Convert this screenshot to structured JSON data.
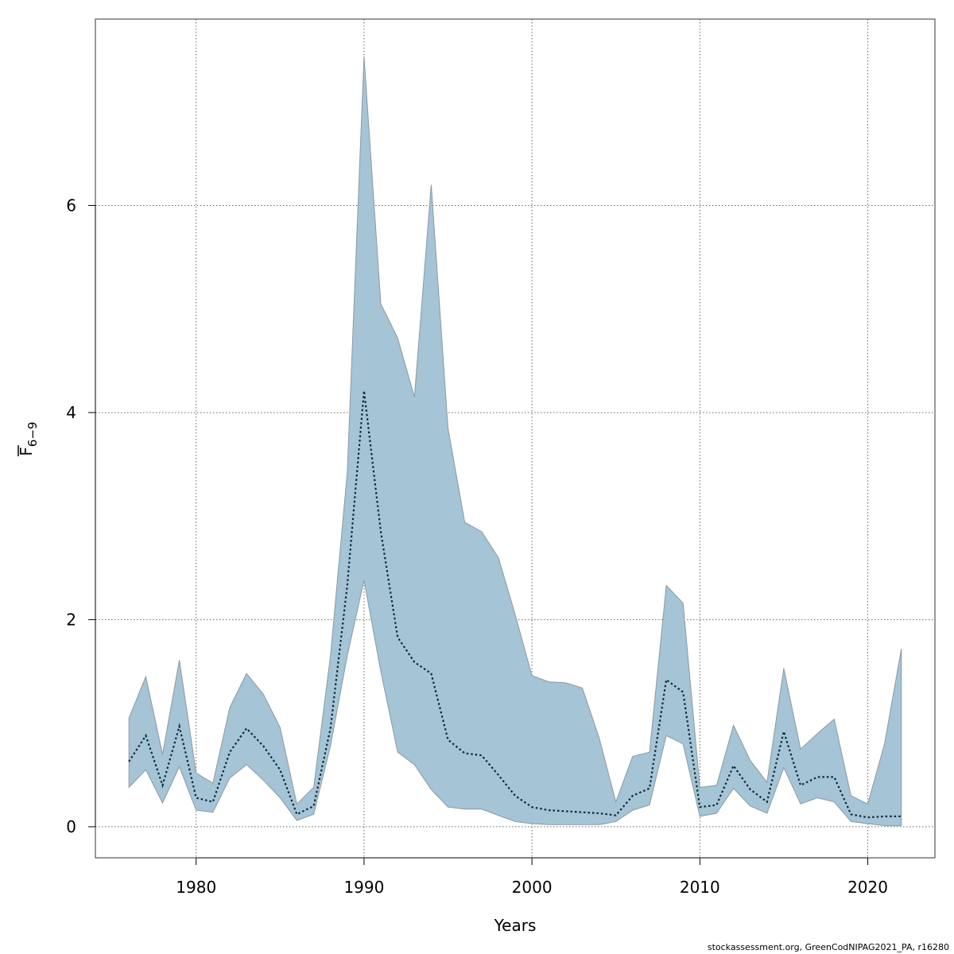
{
  "chart_data": {
    "type": "area",
    "title": "",
    "xlabel": "Years",
    "ylabel_main": "F",
    "ylabel_sub": "6−9",
    "xlim": [
      1974,
      2024
    ],
    "ylim": [
      -0.3,
      7.8
    ],
    "x_ticks": [
      1980,
      1990,
      2000,
      2010,
      2020
    ],
    "y_ticks": [
      0,
      2,
      4,
      6
    ],
    "grid": true,
    "legend": "none",
    "band_color": "#a5c4d5",
    "band_edge_color": "#8a9aa5",
    "line_color": "#0a2a3a",
    "x": [
      1976,
      1977,
      1978,
      1979,
      1980,
      1981,
      1982,
      1983,
      1984,
      1985,
      1986,
      1987,
      1988,
      1989,
      1990,
      1991,
      1992,
      1993,
      1994,
      1995,
      1996,
      1997,
      1998,
      1999,
      2000,
      2001,
      2002,
      2003,
      2004,
      2005,
      2006,
      2007,
      2008,
      2009,
      2010,
      2011,
      2012,
      2013,
      2014,
      2015,
      2016,
      2017,
      2018,
      2019,
      2020,
      2021,
      2022
    ],
    "series": [
      {
        "role": "estimate",
        "values": [
          0.63,
          0.88,
          0.4,
          0.97,
          0.28,
          0.24,
          0.72,
          0.95,
          0.78,
          0.55,
          0.12,
          0.2,
          0.95,
          2.33,
          4.21,
          2.85,
          1.83,
          1.59,
          1.48,
          0.84,
          0.71,
          0.69,
          0.5,
          0.3,
          0.19,
          0.16,
          0.15,
          0.14,
          0.13,
          0.11,
          0.3,
          0.37,
          1.42,
          1.3,
          0.19,
          0.21,
          0.59,
          0.36,
          0.24,
          0.92,
          0.4,
          0.48,
          0.48,
          0.12,
          0.09,
          0.1,
          0.1
        ]
      },
      {
        "role": "lower",
        "values": [
          0.38,
          0.55,
          0.23,
          0.58,
          0.16,
          0.14,
          0.47,
          0.6,
          0.45,
          0.28,
          0.06,
          0.12,
          0.78,
          1.65,
          2.38,
          1.5,
          0.72,
          0.6,
          0.36,
          0.19,
          0.17,
          0.17,
          0.11,
          0.05,
          0.03,
          0.02,
          0.02,
          0.02,
          0.02,
          0.05,
          0.16,
          0.21,
          0.88,
          0.8,
          0.1,
          0.13,
          0.37,
          0.2,
          0.13,
          0.57,
          0.22,
          0.28,
          0.24,
          0.05,
          0.03,
          0.01,
          0.01
        ]
      },
      {
        "role": "upper",
        "values": [
          1.05,
          1.45,
          0.7,
          1.61,
          0.52,
          0.42,
          1.15,
          1.48,
          1.28,
          0.96,
          0.22,
          0.38,
          1.65,
          3.42,
          7.44,
          5.05,
          4.72,
          4.15,
          6.2,
          3.85,
          2.94,
          2.85,
          2.6,
          2.05,
          1.46,
          1.4,
          1.39,
          1.34,
          0.86,
          0.24,
          0.68,
          0.72,
          2.33,
          2.16,
          0.38,
          0.4,
          0.98,
          0.64,
          0.43,
          1.53,
          0.75,
          0.9,
          1.04,
          0.3,
          0.22,
          0.8,
          1.72
        ]
      }
    ]
  },
  "footer": {
    "credit": "stockassessment.org, GreenCodNIPAG2021_PA, r16280"
  }
}
